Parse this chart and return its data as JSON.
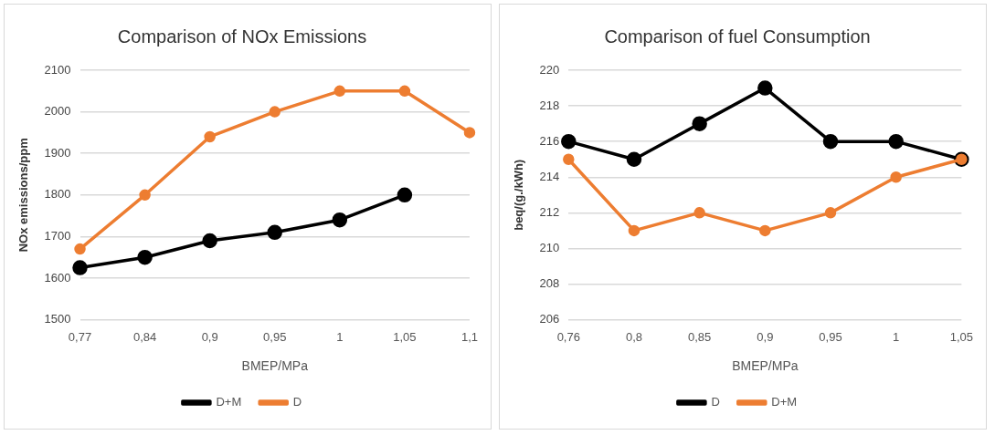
{
  "chart_data": [
    {
      "type": "line",
      "title": "Comparison of NOx Emissions",
      "xlabel": "BMEP/MPa",
      "ylabel": "NOx emissions/ppm",
      "categories": [
        "0,77",
        "0,84",
        "0,9",
        "0,95",
        "1",
        "1,05",
        "1,1"
      ],
      "series": [
        {
          "name": "D+M",
          "color": "#000000",
          "values": [
            1625,
            1650,
            1690,
            1710,
            1740,
            1800,
            null
          ]
        },
        {
          "name": "D",
          "color": "#ed7d31",
          "values": [
            1670,
            1800,
            1940,
            2000,
            2050,
            2050,
            1950
          ]
        }
      ],
      "ylim": [
        1500,
        2100
      ],
      "yticks": [
        1500,
        1600,
        1700,
        1800,
        1900,
        2000,
        2100
      ],
      "grid": "y",
      "legend": "bottom",
      "marker": "circle"
    },
    {
      "type": "line",
      "title": "Comparison of fuel Consumption",
      "xlabel": "BMEP/MPa",
      "ylabel": "beq/(g./kWh)",
      "categories": [
        "0,76",
        "0,8",
        "0,85",
        "0,9",
        "0,95",
        "1",
        "1,05"
      ],
      "series": [
        {
          "name": "D",
          "color": "#000000",
          "values": [
            216,
            215,
            217,
            219,
            216,
            216,
            215
          ]
        },
        {
          "name": "D+M",
          "color": "#ed7d31",
          "values": [
            215,
            211,
            212,
            211,
            212,
            214,
            215
          ]
        }
      ],
      "ylim": [
        206,
        220
      ],
      "yticks": [
        206,
        208,
        210,
        212,
        214,
        216,
        218,
        220
      ],
      "grid": "y",
      "legend": "bottom",
      "marker": "circle"
    }
  ]
}
